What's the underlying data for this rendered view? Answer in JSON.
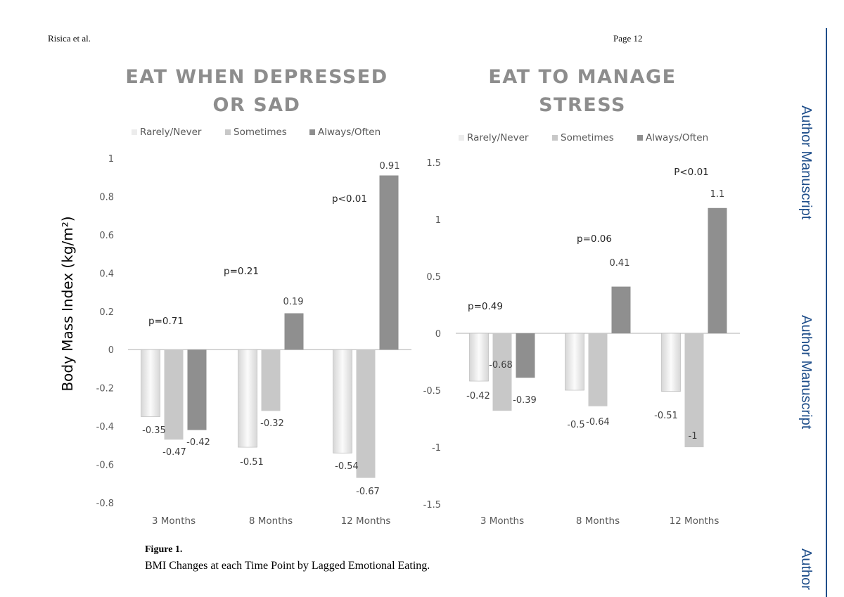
{
  "page": {
    "header_left": "Risica et al.",
    "header_right": "Page 12",
    "side_labels": [
      "Author Manuscript",
      "Author Manuscript",
      "Author"
    ]
  },
  "figure": {
    "label": "Figure 1.",
    "caption": "BMI Changes at each Time Point by Lagged Emotional Eating."
  },
  "chart_data": [
    {
      "type": "bar",
      "title_lines": [
        "EAT WHEN DEPRESSED",
        "OR SAD"
      ],
      "ylabel": "Body Mass Index (kg/m²)",
      "xlabel": "",
      "categories": [
        "3 Months",
        "8 Months",
        "12 Months"
      ],
      "ylim": [
        -0.8,
        1
      ],
      "yticks": [
        -0.8,
        -0.6,
        -0.4,
        -0.2,
        0,
        0.2,
        0.4,
        0.6,
        0.8,
        1
      ],
      "ytick_labels": [
        "-0.8",
        "-0.6",
        "-0.4",
        "-0.2",
        "0",
        "0.2",
        "0.4",
        "0.6",
        "0.8",
        "1"
      ],
      "legend_position": "top",
      "series": [
        {
          "name": "Rarely/Never",
          "values": [
            -0.35,
            -0.51,
            -0.54
          ],
          "labels": [
            "-0.35",
            "-0.51",
            "-0.54"
          ],
          "color": "#ececec"
        },
        {
          "name": "Sometimes",
          "values": [
            -0.47,
            -0.32,
            -0.67
          ],
          "labels": [
            "-0.47",
            "-0.32",
            "-0.67"
          ],
          "color": "#c8c8c8"
        },
        {
          "name": "Always/Often",
          "values": [
            -0.42,
            0.19,
            0.91
          ],
          "labels": [
            "-0.42",
            "0.19",
            "0.91"
          ],
          "color": "#8f8f8f"
        }
      ],
      "pvalues": [
        "p=0.71",
        "p=0.21",
        "p<0.01"
      ]
    },
    {
      "type": "bar",
      "title_lines": [
        "EAT TO MANAGE",
        "STRESS"
      ],
      "ylabel": "",
      "xlabel": "",
      "categories": [
        "3 Months",
        "8 Months",
        "12 Months"
      ],
      "ylim": [
        -1.5,
        1.5
      ],
      "yticks": [
        -1.5,
        -1,
        -0.5,
        0,
        0.5,
        1,
        1.5
      ],
      "ytick_labels": [
        "-1.5",
        "-1",
        "-0.5",
        "0",
        "0.5",
        "1",
        "1.5"
      ],
      "legend_position": "top",
      "series": [
        {
          "name": "Rarely/Never",
          "values": [
            -0.42,
            -0.5,
            -0.51
          ],
          "labels": [
            "-0.42",
            "-0.5",
            "-0.51"
          ],
          "color": "#ececec"
        },
        {
          "name": "Sometimes",
          "values": [
            -0.68,
            -0.64,
            -1
          ],
          "labels": [
            "-0.68",
            "-0.64",
            "-1"
          ],
          "color": "#c8c8c8"
        },
        {
          "name": "Always/Often",
          "values": [
            -0.39,
            0.41,
            1.1
          ],
          "labels": [
            "-0.39",
            "0.41",
            "1.1"
          ],
          "color": "#8f8f8f"
        }
      ],
      "pvalues": [
        "p=0.49",
        "p=0.06",
        "P<0.01"
      ]
    }
  ]
}
